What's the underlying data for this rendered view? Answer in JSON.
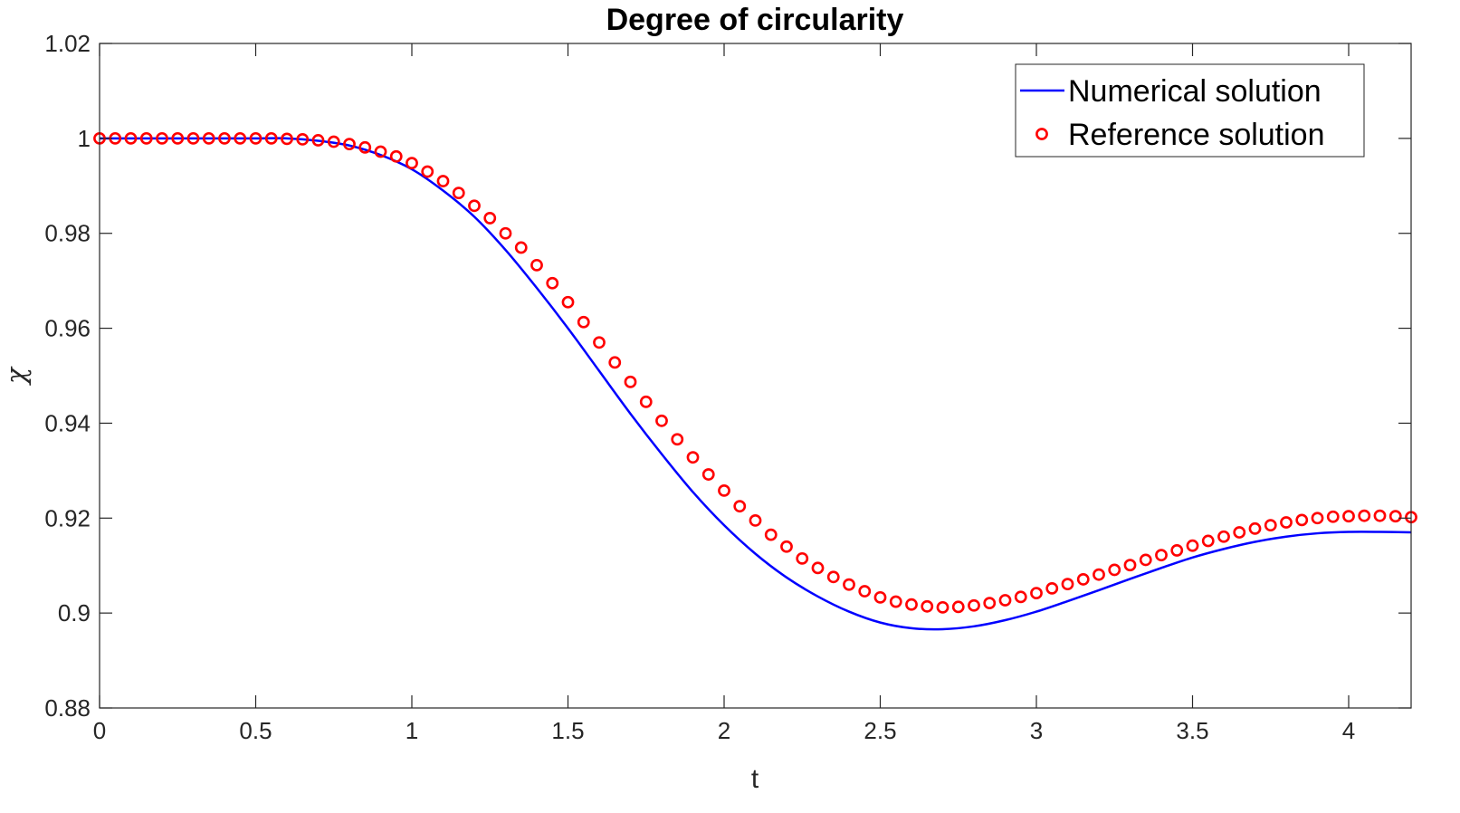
{
  "chart_data": {
    "type": "line",
    "title": "Degree of circularity",
    "xlabel": "t",
    "ylabel": "χ",
    "xlim": [
      0,
      4.2
    ],
    "ylim": [
      0.88,
      1.02
    ],
    "xticks": [
      0,
      0.5,
      1,
      1.5,
      2,
      2.5,
      3,
      3.5,
      4
    ],
    "xtick_labels": [
      "0",
      "0.5",
      "1",
      "1.5",
      "2",
      "2.5",
      "3",
      "3.5",
      "4"
    ],
    "yticks": [
      0.88,
      0.9,
      0.92,
      0.94,
      0.96,
      0.98,
      1,
      1.02
    ],
    "ytick_labels": [
      "0.88",
      "0.9",
      "0.92",
      "0.94",
      "0.96",
      "0.98",
      "1",
      "1.02"
    ],
    "grid": false,
    "legend_position": "top-right",
    "series": [
      {
        "name": "Numerical solution",
        "style": "line",
        "color": "#0000FF",
        "x": [
          0,
          0.1,
          0.2,
          0.3,
          0.4,
          0.5,
          0.6,
          0.7,
          0.8,
          0.9,
          1.0,
          1.1,
          1.2,
          1.3,
          1.4,
          1.5,
          1.6,
          1.7,
          1.8,
          1.9,
          2.0,
          2.1,
          2.2,
          2.3,
          2.4,
          2.5,
          2.6,
          2.7,
          2.8,
          2.9,
          3.0,
          3.1,
          3.2,
          3.3,
          3.4,
          3.5,
          3.6,
          3.7,
          3.8,
          3.9,
          4.0,
          4.1,
          4.2
        ],
        "y": [
          1.0,
          1.0,
          1.0,
          1.0,
          1.0,
          1.0,
          1.0,
          0.9995,
          0.9985,
          0.9965,
          0.9935,
          0.989,
          0.9835,
          0.9765,
          0.9685,
          0.96,
          0.951,
          0.942,
          0.9335,
          0.9255,
          0.9185,
          0.9125,
          0.9075,
          0.9035,
          0.9003,
          0.898,
          0.8968,
          0.8966,
          0.8972,
          0.8985,
          0.9003,
          0.9025,
          0.9048,
          0.9072,
          0.9095,
          0.9117,
          0.9135,
          0.915,
          0.9161,
          0.9168,
          0.9171,
          0.9171,
          0.917
        ]
      },
      {
        "name": "Reference solution",
        "style": "markers",
        "marker": "circle",
        "color": "#FF0000",
        "x": [
          0,
          0.05,
          0.1,
          0.15,
          0.2,
          0.25,
          0.3,
          0.35,
          0.4,
          0.45,
          0.5,
          0.55,
          0.6,
          0.65,
          0.7,
          0.75,
          0.8,
          0.85,
          0.9,
          0.95,
          1.0,
          1.05,
          1.1,
          1.15,
          1.2,
          1.25,
          1.3,
          1.35,
          1.4,
          1.45,
          1.5,
          1.55,
          1.6,
          1.65,
          1.7,
          1.75,
          1.8,
          1.85,
          1.9,
          1.95,
          2.0,
          2.05,
          2.1,
          2.15,
          2.2,
          2.25,
          2.3,
          2.35,
          2.4,
          2.45,
          2.5,
          2.55,
          2.6,
          2.65,
          2.7,
          2.75,
          2.8,
          2.85,
          2.9,
          2.95,
          3.0,
          3.05,
          3.1,
          3.15,
          3.2,
          3.25,
          3.3,
          3.35,
          3.4,
          3.45,
          3.5,
          3.55,
          3.6,
          3.65,
          3.7,
          3.75,
          3.8,
          3.85,
          3.9,
          3.95,
          4.0,
          4.05,
          4.1,
          4.15,
          4.2
        ],
        "y": [
          1.0,
          1.0,
          1.0,
          1.0,
          1.0,
          1.0,
          1.0,
          1.0,
          1.0,
          1.0,
          1.0,
          1.0,
          0.9999,
          0.9998,
          0.9996,
          0.9993,
          0.9988,
          0.9981,
          0.9972,
          0.9962,
          0.9948,
          0.993,
          0.991,
          0.9885,
          0.9858,
          0.9832,
          0.98,
          0.977,
          0.9733,
          0.9695,
          0.9655,
          0.9613,
          0.957,
          0.9528,
          0.9487,
          0.9445,
          0.9405,
          0.9366,
          0.9328,
          0.9292,
          0.9258,
          0.9225,
          0.9195,
          0.9165,
          0.914,
          0.9115,
          0.9095,
          0.9076,
          0.906,
          0.9046,
          0.9033,
          0.9024,
          0.9018,
          0.9014,
          0.9012,
          0.9013,
          0.9016,
          0.9021,
          0.9027,
          0.9034,
          0.9042,
          0.9052,
          0.9061,
          0.9071,
          0.9081,
          0.9091,
          0.9101,
          0.9112,
          0.9122,
          0.9132,
          0.9142,
          0.9152,
          0.9161,
          0.917,
          0.9178,
          0.9185,
          0.9191,
          0.9196,
          0.92,
          0.9203,
          0.9204,
          0.9205,
          0.9205,
          0.9204,
          0.9202
        ]
      }
    ]
  }
}
